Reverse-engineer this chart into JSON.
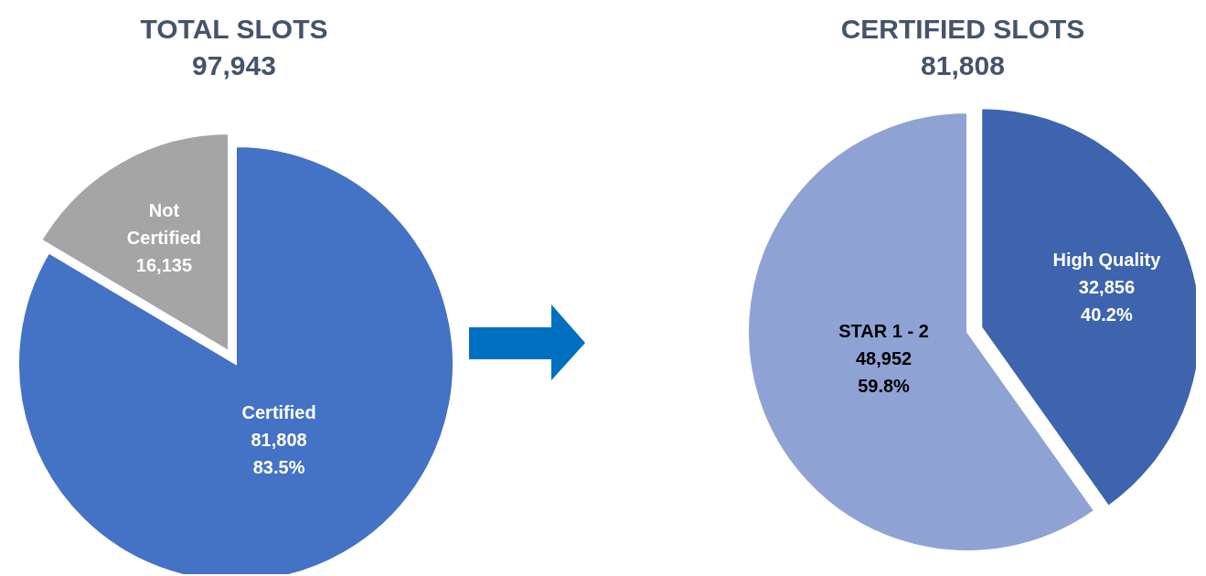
{
  "chart_data": [
    {
      "type": "pie",
      "title": "TOTAL SLOTS",
      "subtitle": "97,943",
      "categories": [
        "Certified",
        "Not Certified"
      ],
      "values": [
        81808,
        16135
      ],
      "colors": [
        "#4472c4",
        "#a5a5a5"
      ],
      "value_labels": [
        "81,808\n83.5%",
        "16,135"
      ]
    },
    {
      "type": "pie",
      "title": "CERTIFIED SLOTS",
      "subtitle": "81,808",
      "categories": [
        "High Quality",
        "STAR 1 - 2"
      ],
      "values": [
        32856,
        48952
      ],
      "colors": [
        "#3d64ad",
        "#8fa2d4"
      ],
      "value_labels": [
        "32,856\n40.2%",
        "48,952\n59.8%"
      ]
    }
  ]
}
